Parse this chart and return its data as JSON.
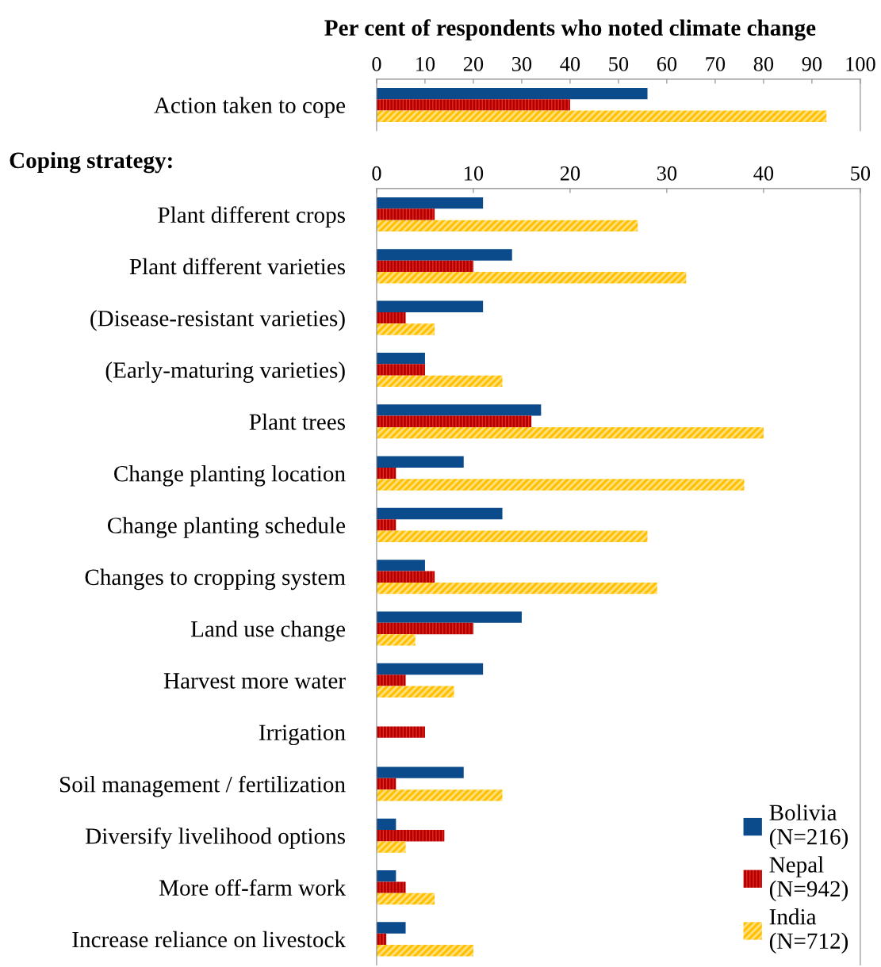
{
  "chart_data": [
    {
      "type": "bar",
      "orientation": "horizontal",
      "title": "Per cent of respondents who noted climate change",
      "categories": [
        "Action taken to cope"
      ],
      "xlim": [
        0,
        100
      ],
      "xticks": [
        0,
        10,
        20,
        30,
        40,
        50,
        60,
        70,
        80,
        90,
        100
      ],
      "grid": false,
      "legend": false,
      "series": [
        {
          "color": "#0b4a8b",
          "values": [
            56
          ]
        },
        {
          "color": "#e8281e",
          "values": [
            40
          ]
        },
        {
          "color": "#ffc000",
          "values": [
            93
          ]
        }
      ]
    },
    {
      "type": "bar",
      "orientation": "horizontal",
      "title": "Coping strategy:",
      "categories": [
        "Plant different crops",
        "Plant different varieties",
        "(Disease-resistant varieties)",
        "(Early-maturing varieties)",
        "Plant trees",
        "Change planting location",
        "Change planting schedule",
        "Changes to cropping system",
        "Land use change",
        "Harvest more water",
        "Irrigation",
        "Soil management / fertilization",
        "Diversify livelihood options",
        "More off-farm work",
        "Increase reliance on livestock"
      ],
      "xlim": [
        0,
        50
      ],
      "xticks": [
        0,
        10,
        20,
        30,
        40,
        50
      ],
      "grid": false,
      "legend": "bottom right",
      "series": [
        {
          "name": "Bolivia\n(N=216)",
          "color": "#0b4a8b",
          "values": [
            11,
            14,
            11,
            5,
            17,
            9,
            13,
            5,
            15,
            11,
            0,
            9,
            2,
            2,
            3
          ]
        },
        {
          "name": "Nepal\n(N=942)",
          "color": "#e8281e",
          "values": [
            6,
            10,
            3,
            5,
            16,
            2,
            2,
            6,
            10,
            3,
            5,
            2,
            7,
            3,
            1
          ]
        },
        {
          "name": "India\n(N=712)",
          "color": "#ffc000",
          "values": [
            27,
            32,
            6,
            13,
            40,
            38,
            28,
            29,
            4,
            8,
            0,
            13,
            3,
            6,
            10
          ]
        }
      ]
    }
  ]
}
